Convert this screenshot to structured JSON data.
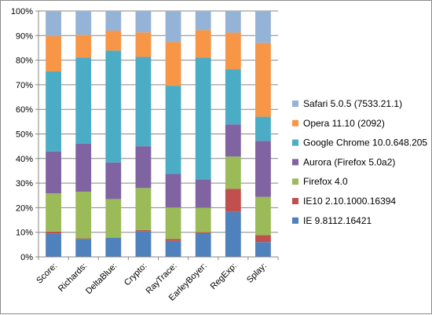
{
  "chart_data": {
    "type": "bar",
    "stacked": true,
    "normalized": true,
    "categories": [
      "Score:",
      "Richards:",
      "DeltaBlue:",
      "Crypto:",
      "RayTrace:",
      "EarleyBoyer:",
      "RegExp:",
      "Splay:"
    ],
    "yticks": [
      "0%",
      "10%",
      "20%",
      "30%",
      "40%",
      "50%",
      "60%",
      "70%",
      "80%",
      "90%",
      "100%"
    ],
    "ylim": [
      0,
      100
    ],
    "grid": true,
    "legend_position": "right",
    "series": [
      {
        "name": "IE 9.8112.16421",
        "color": "#4f81bd",
        "values": [
          9.5,
          7.3,
          7.8,
          10.5,
          6.5,
          9.6,
          18.3,
          6.0
        ]
      },
      {
        "name": "IE10 2.10.1000.16394",
        "color": "#c0504d",
        "values": [
          0.8,
          0.2,
          0.1,
          0.4,
          0.8,
          0.4,
          9.4,
          2.8
        ]
      },
      {
        "name": "Firefox 4.0",
        "color": "#9bbb59",
        "values": [
          15.5,
          19.0,
          15.6,
          17.1,
          12.8,
          10.0,
          13.1,
          15.6
        ]
      },
      {
        "name": "Aurora (Firefox 5.0a2)",
        "color": "#8064a2",
        "values": [
          17.1,
          19.6,
          14.9,
          17.0,
          13.6,
          11.5,
          13.1,
          22.8
        ]
      },
      {
        "name": "Google Chrome 10.0.648.205",
        "color": "#4bacc6",
        "values": [
          32.5,
          35.0,
          45.5,
          36.3,
          35.9,
          49.5,
          22.3,
          9.8
        ]
      },
      {
        "name": "Opera 11.10 (2092)",
        "color": "#f79646",
        "values": [
          14.5,
          9.2,
          8.1,
          10.0,
          17.8,
          11.2,
          15.0,
          30.0
        ]
      },
      {
        "name": "Safari 5.0.5 (7533.21.1)",
        "color": "#95b3d7",
        "values": [
          10.1,
          9.7,
          8.0,
          8.7,
          12.6,
          7.8,
          8.8,
          13.0
        ]
      }
    ]
  }
}
